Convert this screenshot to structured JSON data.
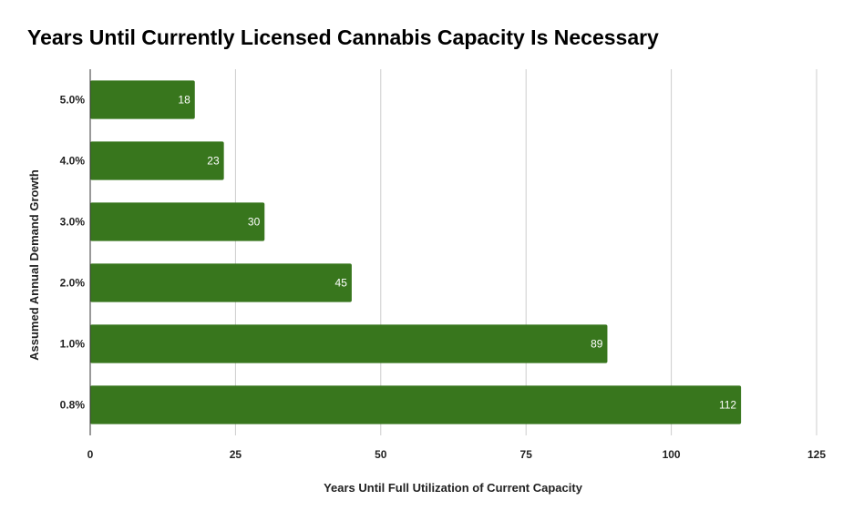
{
  "chart_data": {
    "type": "bar",
    "orientation": "horizontal",
    "title": "Years Until Currently Licensed Cannabis Capacity Is Necessary",
    "xlabel": "Years Until Full Utilization of Current Capacity",
    "ylabel": "Assumed Annual Demand Growth",
    "categories": [
      "5.0%",
      "4.0%",
      "3.0%",
      "2.0%",
      "1.0%",
      "0.8%"
    ],
    "values": [
      18,
      23,
      30,
      45,
      89,
      112
    ],
    "data_labels": [
      "18",
      "23",
      "30",
      "45",
      "89",
      "112"
    ],
    "xlim": [
      0,
      125
    ],
    "x_ticks": [
      0,
      25,
      50,
      75,
      100,
      125
    ],
    "x_tick_labels": [
      "0",
      "25",
      "50",
      "75",
      "100",
      "125"
    ],
    "grid": "vertical",
    "legend": "none",
    "bar_color": "#38761d",
    "grid_color": "#cccccc",
    "axis_color": "#333333"
  }
}
